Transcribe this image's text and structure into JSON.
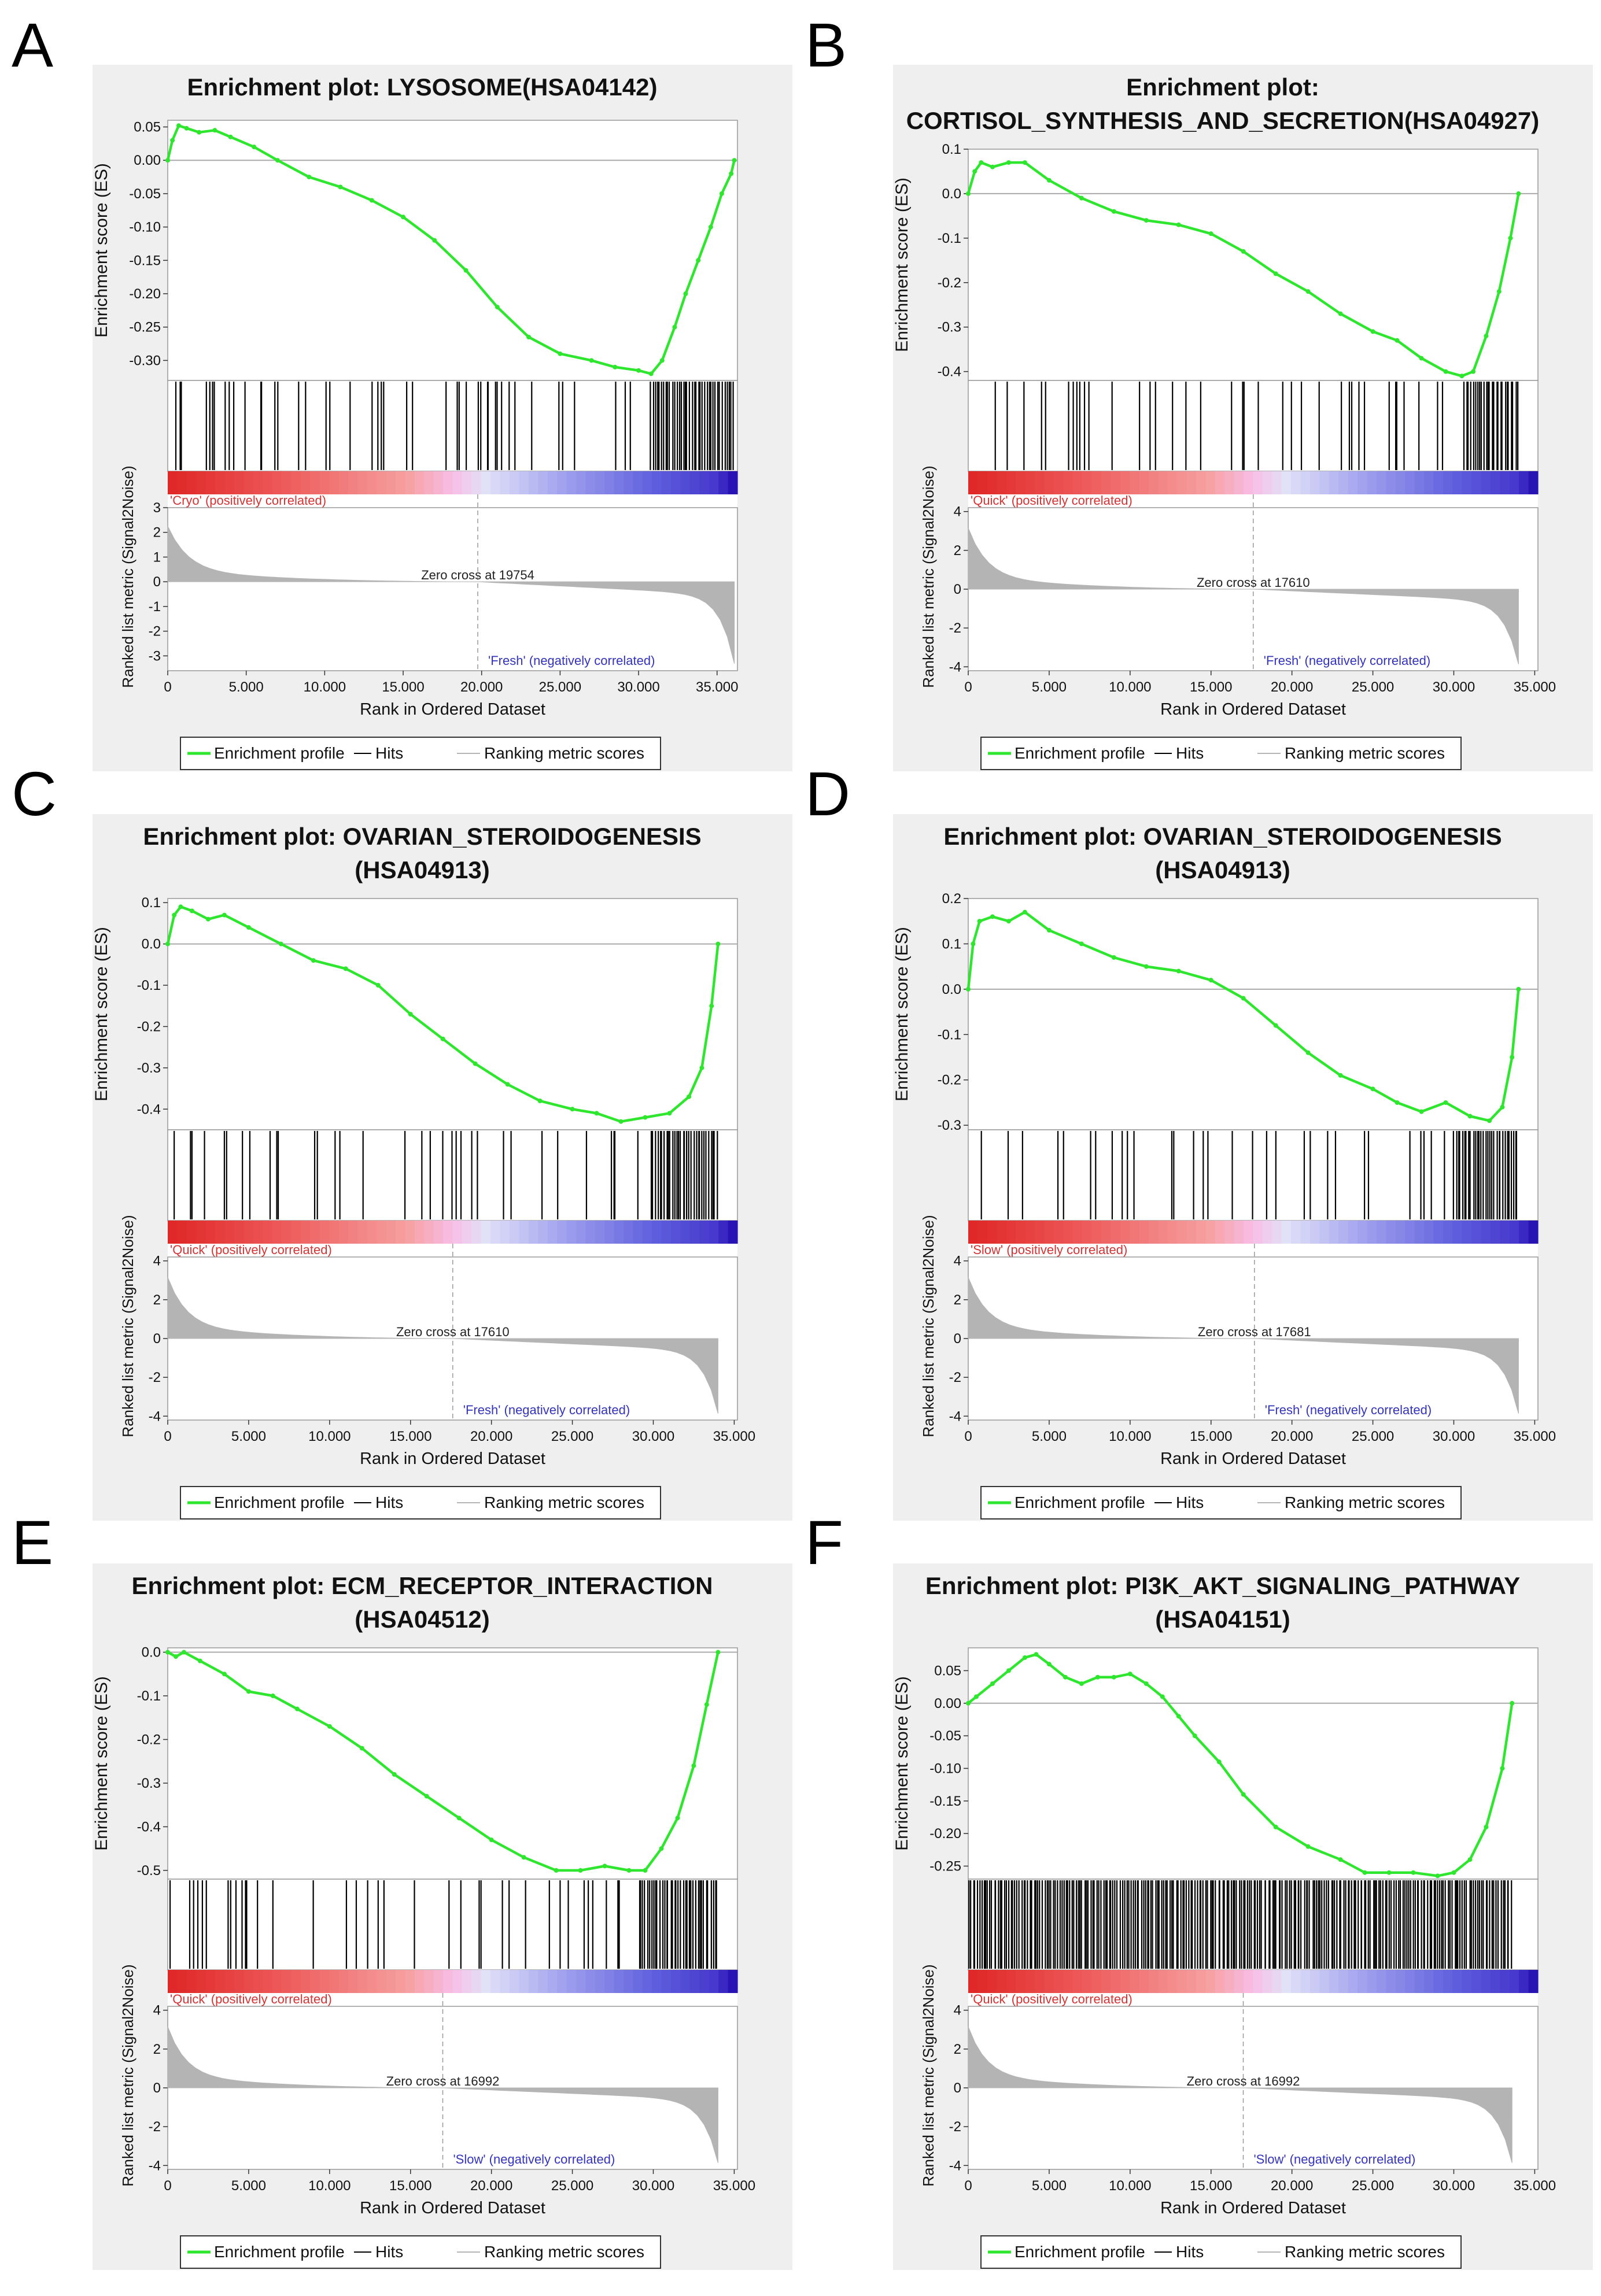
{
  "common": {
    "xlabel": "Rank in Ordered Dataset",
    "ylabel_es": "Enrichment score (ES)",
    "ylabel_metric": "Ranked list metric (Signal2Noise)",
    "legend": [
      "Enrichment profile",
      "Hits",
      "Ranking metric scores"
    ],
    "colors": {
      "es_line": "#2ee62e",
      "hits": "#000000",
      "metric": "#b4b4b4",
      "panel_bg": "#efefef",
      "pos_label": "#d33333",
      "neg_label": "#3333bb"
    }
  },
  "chart_data": [
    {
      "panel": "A",
      "type": "line",
      "title_lines": [
        "Enrichment plot: LYSOSOME(HSA04142)"
      ],
      "es_ticks": [
        "0.05",
        "0.00",
        "-0.05",
        "-0.10",
        "-0.15",
        "-0.20",
        "-0.25",
        "-0.30"
      ],
      "es_ylim": [
        -0.33,
        0.06
      ],
      "metric_ticks": [
        "3",
        "2",
        "1",
        "0",
        "-1",
        "-2",
        "-3"
      ],
      "metric_ylim": [
        -3.6,
        3.0
      ],
      "x_ticks": [
        "0",
        "5.000",
        "10.000",
        "15.000",
        "20.000",
        "25.000",
        "30.000",
        "35.000"
      ],
      "x_tick_values": [
        0,
        5000,
        10000,
        15000,
        20000,
        25000,
        30000,
        35000
      ],
      "xlim": [
        0,
        36300
      ],
      "n_genes": 36100,
      "es_x": [
        0,
        300,
        700,
        1200,
        2000,
        3000,
        4000,
        5500,
        7000,
        9000,
        11000,
        13000,
        15000,
        17000,
        19000,
        21000,
        23000,
        25000,
        27000,
        28500,
        30000,
        30800,
        31500,
        32300,
        33000,
        33800,
        34600,
        35300,
        35900,
        36100
      ],
      "es_y": [
        0,
        0.03,
        0.052,
        0.048,
        0.042,
        0.045,
        0.035,
        0.02,
        0.0,
        -0.025,
        -0.04,
        -0.06,
        -0.085,
        -0.12,
        -0.165,
        -0.22,
        -0.265,
        -0.29,
        -0.3,
        -0.31,
        -0.315,
        -0.32,
        -0.3,
        -0.25,
        -0.2,
        -0.15,
        -0.1,
        -0.05,
        -0.02,
        0
      ],
      "hit_density": 0.06,
      "hit_tail_density": 0.55,
      "hit_tail_start": 0.85,
      "seed": 11,
      "pos_label": "'Cryo' (positively correlated)",
      "neg_label": "'Fresh' (negatively correlated)",
      "zero_cross_text": "Zero cross at 19754",
      "zero_cross": 19754
    },
    {
      "panel": "B",
      "type": "line",
      "title_lines": [
        "Enrichment plot:",
        "CORTISOL_SYNTHESIS_AND_SECRETION(HSA04927)"
      ],
      "es_ticks": [
        "0.1",
        "0.0",
        "-0.1",
        "-0.2",
        "-0.3",
        "-0.4"
      ],
      "es_ylim": [
        -0.42,
        0.1
      ],
      "metric_ticks": [
        "4",
        "2",
        "0",
        "-2",
        "-4"
      ],
      "metric_ylim": [
        -4.2,
        4.2
      ],
      "x_ticks": [
        "0",
        "5.000",
        "10.000",
        "15.000",
        "20.000",
        "25.000",
        "30.000",
        "35.000"
      ],
      "x_tick_values": [
        0,
        5000,
        10000,
        15000,
        20000,
        25000,
        30000,
        35000
      ],
      "xlim": [
        0,
        35200
      ],
      "n_genes": 34000,
      "es_x": [
        0,
        400,
        800,
        1500,
        2500,
        3500,
        5000,
        7000,
        9000,
        11000,
        13000,
        15000,
        17000,
        19000,
        21000,
        23000,
        25000,
        26500,
        28000,
        29500,
        30500,
        31200,
        32000,
        32800,
        33500,
        34000
      ],
      "es_y": [
        0,
        0.05,
        0.07,
        0.06,
        0.07,
        0.07,
        0.03,
        -0.01,
        -0.04,
        -0.06,
        -0.07,
        -0.09,
        -0.13,
        -0.18,
        -0.22,
        -0.27,
        -0.31,
        -0.33,
        -0.37,
        -0.4,
        -0.41,
        -0.4,
        -0.32,
        -0.22,
        -0.1,
        0
      ],
      "hit_density": 0.03,
      "hit_tail_density": 0.4,
      "hit_tail_start": 0.9,
      "seed": 23,
      "pos_label": "'Quick' (positively correlated)",
      "neg_label": "'Fresh' (negatively correlated)",
      "zero_cross_text": "Zero cross at 17610",
      "zero_cross": 17610
    },
    {
      "panel": "C",
      "type": "line",
      "title_lines": [
        "Enrichment plot: OVARIAN_STEROIDOGENESIS",
        "(HSA04913)"
      ],
      "es_ticks": [
        "0.1",
        "0.0",
        "-0.1",
        "-0.2",
        "-0.3",
        "-0.4"
      ],
      "es_ylim": [
        -0.45,
        0.11
      ],
      "metric_ticks": [
        "4",
        "2",
        "0",
        "-2",
        "-4"
      ],
      "metric_ylim": [
        -4.2,
        4.2
      ],
      "x_ticks": [
        "0",
        "5.000",
        "10.000",
        "15.000",
        "20.000",
        "25.000",
        "30.000",
        "35.000"
      ],
      "x_tick_values": [
        0,
        5000,
        10000,
        15000,
        20000,
        25000,
        30000,
        35000
      ],
      "xlim": [
        0,
        35200
      ],
      "n_genes": 34000,
      "es_x": [
        0,
        400,
        800,
        1500,
        2500,
        3500,
        5000,
        7000,
        9000,
        11000,
        13000,
        15000,
        17000,
        19000,
        21000,
        23000,
        25000,
        26500,
        28000,
        29500,
        31000,
        32200,
        33000,
        33600,
        34000
      ],
      "es_y": [
        0,
        0.07,
        0.09,
        0.08,
        0.06,
        0.07,
        0.04,
        0.0,
        -0.04,
        -0.06,
        -0.1,
        -0.17,
        -0.23,
        -0.29,
        -0.34,
        -0.38,
        -0.4,
        -0.41,
        -0.43,
        -0.42,
        -0.41,
        -0.37,
        -0.3,
        -0.15,
        0
      ],
      "hit_density": 0.045,
      "hit_tail_density": 0.4,
      "hit_tail_start": 0.88,
      "seed": 37,
      "pos_label": "'Quick' (positively correlated)",
      "neg_label": "'Fresh' (negatively correlated)",
      "zero_cross_text": "Zero cross at 17610",
      "zero_cross": 17610
    },
    {
      "panel": "D",
      "type": "line",
      "title_lines": [
        "Enrichment plot: OVARIAN_STEROIDOGENESIS",
        "(HSA04913)"
      ],
      "es_ticks": [
        "0.2",
        "0.1",
        "0.0",
        "-0.1",
        "-0.2",
        "-0.3"
      ],
      "es_ylim": [
        -0.31,
        0.2
      ],
      "metric_ticks": [
        "4",
        "2",
        "0",
        "-2",
        "-4"
      ],
      "metric_ylim": [
        -4.2,
        4.2
      ],
      "x_ticks": [
        "0",
        "5.000",
        "10.000",
        "15.000",
        "20.000",
        "25.000",
        "30.000",
        "35.000"
      ],
      "x_tick_values": [
        0,
        5000,
        10000,
        15000,
        20000,
        25000,
        30000,
        35000
      ],
      "xlim": [
        0,
        35200
      ],
      "n_genes": 34000,
      "es_x": [
        0,
        300,
        700,
        1500,
        2500,
        3500,
        5000,
        7000,
        9000,
        11000,
        13000,
        15000,
        17000,
        19000,
        21000,
        23000,
        25000,
        26500,
        28000,
        29500,
        31000,
        32200,
        33000,
        33600,
        34000
      ],
      "es_y": [
        0,
        0.1,
        0.15,
        0.16,
        0.15,
        0.17,
        0.13,
        0.1,
        0.07,
        0.05,
        0.04,
        0.02,
        -0.02,
        -0.08,
        -0.14,
        -0.19,
        -0.22,
        -0.25,
        -0.27,
        -0.25,
        -0.28,
        -0.29,
        -0.26,
        -0.15,
        0
      ],
      "hit_density": 0.045,
      "hit_tail_density": 0.4,
      "hit_tail_start": 0.88,
      "seed": 41,
      "pos_label": "'Slow' (positively correlated)",
      "neg_label": "'Fresh' (negatively correlated)",
      "zero_cross_text": "Zero cross at 17681",
      "zero_cross": 17681
    },
    {
      "panel": "E",
      "type": "line",
      "title_lines": [
        "Enrichment plot: ECM_RECEPTOR_INTERACTION",
        "(HSA04512)"
      ],
      "es_ticks": [
        "0.0",
        "-0.1",
        "-0.2",
        "-0.3",
        "-0.4",
        "-0.5"
      ],
      "es_ylim": [
        -0.52,
        0.01
      ],
      "metric_ticks": [
        "4",
        "2",
        "0",
        "-2",
        "-4"
      ],
      "metric_ylim": [
        -4.2,
        4.2
      ],
      "x_ticks": [
        "0",
        "5.000",
        "10.000",
        "15.000",
        "20.000",
        "25.000",
        "30.000",
        "35.000"
      ],
      "x_tick_values": [
        0,
        5000,
        10000,
        15000,
        20000,
        25000,
        30000,
        35000
      ],
      "xlim": [
        0,
        35200
      ],
      "n_genes": 34000,
      "es_x": [
        0,
        500,
        1000,
        2000,
        3500,
        5000,
        6500,
        8000,
        10000,
        12000,
        14000,
        16000,
        18000,
        20000,
        22000,
        24000,
        25500,
        27000,
        28500,
        29500,
        30500,
        31500,
        32500,
        33300,
        34000
      ],
      "es_y": [
        0,
        -0.01,
        0.0,
        -0.02,
        -0.05,
        -0.09,
        -0.1,
        -0.13,
        -0.17,
        -0.22,
        -0.28,
        -0.33,
        -0.38,
        -0.43,
        -0.47,
        -0.5,
        -0.5,
        -0.49,
        -0.5,
        -0.5,
        -0.45,
        -0.38,
        -0.26,
        -0.12,
        0
      ],
      "hit_density": 0.05,
      "hit_tail_density": 0.5,
      "hit_tail_start": 0.85,
      "seed": 53,
      "pos_label": "'Quick' (positively correlated)",
      "neg_label": "'Slow' (negatively correlated)",
      "zero_cross_text": "Zero cross at 16992",
      "zero_cross": 16992
    },
    {
      "panel": "F",
      "type": "line",
      "title_lines": [
        "Enrichment plot: PI3K_AKT_SIGNALING_PATHWAY",
        "(HSA04151)"
      ],
      "es_ticks": [
        "0.05",
        "0.00",
        "-0.05",
        "-0.10",
        "-0.15",
        "-0.20",
        "-0.25"
      ],
      "es_ylim": [
        -0.27,
        0.085
      ],
      "metric_ticks": [
        "4",
        "2",
        "0",
        "-2",
        "-4"
      ],
      "metric_ylim": [
        -4.2,
        4.2
      ],
      "x_ticks": [
        "0",
        "5.000",
        "10.000",
        "15.000",
        "20.000",
        "25.000",
        "30.000",
        "35.000"
      ],
      "x_tick_values": [
        0,
        5000,
        10000,
        15000,
        20000,
        25000,
        30000,
        35000
      ],
      "xlim": [
        0,
        35200
      ],
      "n_genes": 33600,
      "es_x": [
        0,
        500,
        1500,
        2500,
        3500,
        4200,
        5000,
        6000,
        7000,
        8000,
        9000,
        10000,
        11000,
        12000,
        13000,
        14000,
        15500,
        17000,
        19000,
        21000,
        23000,
        24500,
        26000,
        27500,
        29000,
        30000,
        31000,
        32000,
        33000,
        33600
      ],
      "es_y": [
        0,
        0.01,
        0.03,
        0.05,
        0.07,
        0.075,
        0.06,
        0.04,
        0.03,
        0.04,
        0.04,
        0.045,
        0.03,
        0.01,
        -0.02,
        -0.05,
        -0.09,
        -0.14,
        -0.19,
        -0.22,
        -0.24,
        -0.26,
        -0.26,
        -0.26,
        -0.265,
        -0.26,
        -0.24,
        -0.19,
        -0.1,
        0
      ],
      "hit_density": 0.5,
      "hit_tail_density": 0.6,
      "hit_tail_start": 0.9,
      "seed": 67,
      "pos_label": "'Quick' (positively correlated)",
      "neg_label": "'Slow' (negatively correlated)",
      "zero_cross_text": "Zero cross at 16992",
      "zero_cross": 16992
    }
  ]
}
